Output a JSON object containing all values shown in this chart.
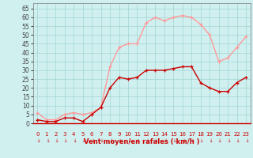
{
  "hours": [
    0,
    1,
    2,
    3,
    4,
    5,
    6,
    7,
    8,
    9,
    10,
    11,
    12,
    13,
    14,
    15,
    16,
    17,
    18,
    19,
    20,
    21,
    22,
    23
  ],
  "vent_moyen": [
    2,
    1,
    1,
    3,
    3,
    1,
    5,
    9,
    20,
    26,
    25,
    26,
    30,
    30,
    30,
    31,
    32,
    32,
    23,
    20,
    18,
    18,
    23,
    26
  ],
  "rafales": [
    6,
    2,
    2,
    5,
    6,
    5,
    6,
    9,
    32,
    43,
    45,
    45,
    57,
    60,
    58,
    60,
    61,
    60,
    56,
    50,
    35,
    37,
    43,
    49
  ],
  "color_moyen": "#cc0000",
  "color_rafales": "#ff9999",
  "bg_color": "#d0f0f0",
  "grid_color": "#a8d8d8",
  "xlabel": "Vent moyen/en rafales ( km/h )",
  "xlabel_color": "#cc0000",
  "ytick_vals": [
    0,
    5,
    10,
    15,
    20,
    25,
    30,
    35,
    40,
    45,
    50,
    55,
    60,
    65
  ],
  "ylim": [
    0,
    68
  ],
  "xlim": [
    -0.5,
    23.5
  ],
  "marker_size": 3.5,
  "linewidth": 1.0
}
